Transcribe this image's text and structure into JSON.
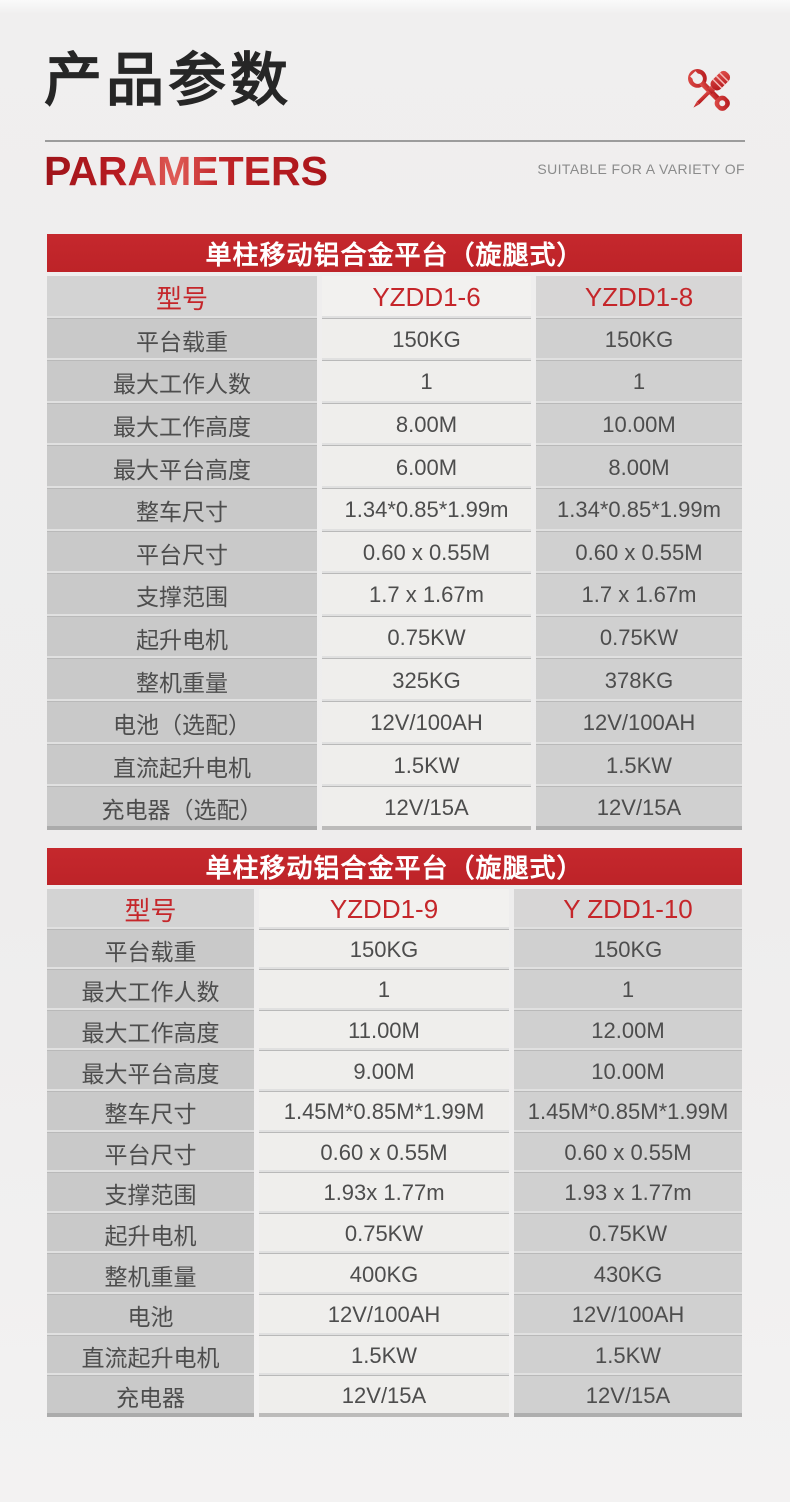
{
  "header": {
    "title_cn": "产品参数",
    "title_en": "PARAMETERS",
    "tagline": "SUITABLE FOR A VARIETY OF",
    "icon": "wrench-screwdriver-icon"
  },
  "colors": {
    "accent_red": "#c1262b",
    "model_red": "#c5262a",
    "bar_text": "#ffffff",
    "cell_text": "#4d4d4d",
    "col1_bg": "#c9c9c9",
    "col2_bg": "#efeeec",
    "col3_bg": "#d0d0d0"
  },
  "tables": [
    {
      "title": "单柱移动铝合金平台（旋腿式）",
      "header_row": [
        "型号",
        "YZDD1-6",
        "YZDD1-8"
      ],
      "rows": [
        [
          "平台载重",
          "150KG",
          "150KG"
        ],
        [
          "最大工作人数",
          "1",
          "1"
        ],
        [
          "最大工作高度",
          "8.00M",
          "10.00M"
        ],
        [
          "最大平台高度",
          "6.00M",
          "8.00M"
        ],
        [
          "整车尺寸",
          "1.34*0.85*1.99m",
          "1.34*0.85*1.99m"
        ],
        [
          "平台尺寸",
          "0.60 x 0.55M",
          "0.60 x 0.55M"
        ],
        [
          "支撑范围",
          "1.7 x 1.67m",
          "1.7 x 1.67m"
        ],
        [
          "起升电机",
          "0.75KW",
          "0.75KW"
        ],
        [
          "整机重量",
          "325KG",
          "378KG"
        ],
        [
          "电池（选配）",
          "12V/100AH",
          "12V/100AH"
        ],
        [
          "直流起升电机",
          "1.5KW",
          "1.5KW"
        ],
        [
          "充电器（选配）",
          "12V/15A",
          "12V/15A"
        ]
      ]
    },
    {
      "title": "单柱移动铝合金平台（旋腿式）",
      "header_row": [
        "型号",
        "YZDD1-9",
        "Y ZDD1-10"
      ],
      "rows": [
        [
          "平台载重",
          "150KG",
          "150KG"
        ],
        [
          "最大工作人数",
          "1",
          "1"
        ],
        [
          "最大工作高度",
          "11.00M",
          "12.00M"
        ],
        [
          "最大平台高度",
          "9.00M",
          "10.00M"
        ],
        [
          "整车尺寸",
          "1.45M*0.85M*1.99M",
          "1.45M*0.85M*1.99M"
        ],
        [
          "平台尺寸",
          "0.60 x 0.55M",
          "0.60 x 0.55M"
        ],
        [
          "支撑范围",
          "1.93x 1.77m",
          "1.93 x 1.77m"
        ],
        [
          "起升电机",
          "0.75KW",
          "0.75KW"
        ],
        [
          "整机重量",
          "400KG",
          "430KG"
        ],
        [
          "电池",
          "12V/100AH",
          "12V/100AH"
        ],
        [
          "直流起升电机",
          "1.5KW",
          "1.5KW"
        ],
        [
          "充电器",
          "12V/15A",
          "12V/15A"
        ]
      ]
    }
  ]
}
